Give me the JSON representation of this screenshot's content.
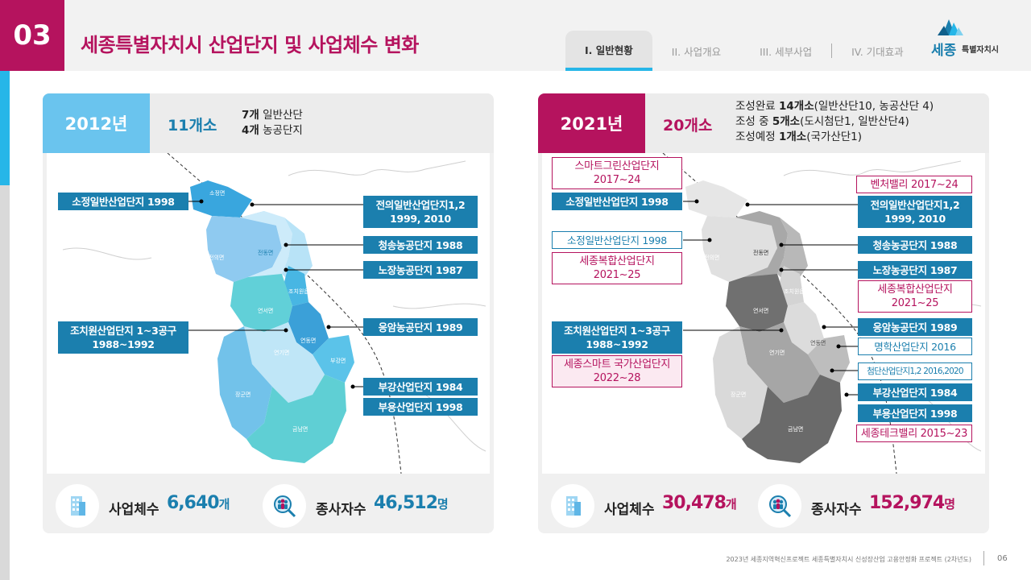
{
  "header": {
    "section_number": "03",
    "title": "세종특별자치시 산업단지 및 사업체수 변화",
    "tabs": [
      {
        "label": "I. 일반현황",
        "active": true
      },
      {
        "label": "II. 사업개요",
        "active": false
      },
      {
        "label": "III. 세부사업",
        "active": false
      },
      {
        "label": "IV. 기대효과",
        "active": false
      }
    ],
    "logo": {
      "text_main": "세종",
      "text_sub": "특별자치시"
    }
  },
  "left": {
    "year": "2012년",
    "count": "11개소",
    "desc": [
      {
        "bold": "7개",
        "text": " 일반산단"
      },
      {
        "bold": "4개",
        "text": " 농공단지"
      }
    ],
    "labels": {
      "sojeong": "소정일반산업단지 1998",
      "jeonui_l1": "전의일반산업단지1,2",
      "jeonui_l2": "1999, 2010",
      "cheongsong": "청송농공단지 1988",
      "nojang": "노장농공단지 1987",
      "jochiwon_l1": "조치원산업단지 1~3공구",
      "jochiwon_l2": "1988~1992",
      "eungam": "응암농공단지 1989",
      "bugang": "부강산업단지 1984",
      "buyong": "부용산업단지 1998"
    },
    "regions": {
      "sojeong": "소정면",
      "jeonui": "전의면",
      "jeondong": "전동면",
      "jochiwon": "조치원읍",
      "yeonseo": "연서면",
      "yeondong": "연동면",
      "yeongi": "연기면",
      "bugang": "부강면",
      "janggun": "장군면",
      "geumnam": "금남면"
    },
    "stats": {
      "biz_label": "사업체수",
      "biz_value": "6,640",
      "biz_unit": "개",
      "emp_label": "종사자수",
      "emp_value": "46,512",
      "emp_unit": "명"
    },
    "colors": {
      "accent": "#26b6e8",
      "value": "#1b7fae"
    }
  },
  "right": {
    "year": "2021년",
    "count": "20개소",
    "desc": [
      {
        "pre": "조성완료 ",
        "bold": "14개소",
        "text": "(일반산단10, 농공산단 4)"
      },
      {
        "pre": "조성 중 ",
        "bold": "5개소",
        "text": "(도시첨단1, 일반산단4)"
      },
      {
        "pre": "조성예정 ",
        "bold": "1개소",
        "text": "(국가산단1)"
      }
    ],
    "labels": {
      "smartgreen_l1": "스마트그린산업단지",
      "smartgreen_l2": "2017~24",
      "sojeong": "소정일반산업단지 1998",
      "sojeong2": "소정일반산업단지 1998",
      "complex_l1": "세종복합산업단지",
      "complex_l2": "2021~25",
      "venture": "벤처밸리 2017~24",
      "jeonui_l1": "전의일반산업단지1,2",
      "jeonui_l2": "1999, 2010",
      "cheongsong": "청송농공단지 1988",
      "nojang": "노장농공단지 1987",
      "complex2_l1": "세종복합산업단지",
      "complex2_l2": "2021~25",
      "jochiwon_l1": "조치원산업단지 1~3공구",
      "jochiwon_l2": "1988~1992",
      "eungam": "응암농공단지 1989",
      "myeonghak": "명학산업단지 2016",
      "smartnational_l1": "세종스마트 국가산업단지",
      "smartnational_l2": "2022~28",
      "cheomdan": "첨단산업단지1,2 2016,2020",
      "bugang": "부강산업단지 1984",
      "buyong": "부용산업단지 1998",
      "techvalley": "세종테크밸리 2015~23"
    },
    "regions": {
      "jeonui": "전의면",
      "jeondong": "전동면",
      "jochiwon": "조치원읍",
      "yeonseo": "연서면",
      "yeondong": "연동면",
      "yeongi": "연기면",
      "janggun": "장군면",
      "geumnam": "금남면"
    },
    "stats": {
      "biz_label": "사업체수",
      "biz_value": "30,478",
      "biz_unit": "개",
      "emp_label": "종사자수",
      "emp_value": "152,974",
      "emp_unit": "명"
    },
    "colors": {
      "accent": "#b5135e",
      "value": "#b5135e"
    }
  },
  "footer": {
    "text": "2023년 세종지역혁신프로젝트 세종특별자치시 신성장산업 고용안정화 프로젝트 (2차년도)",
    "page": "06"
  }
}
